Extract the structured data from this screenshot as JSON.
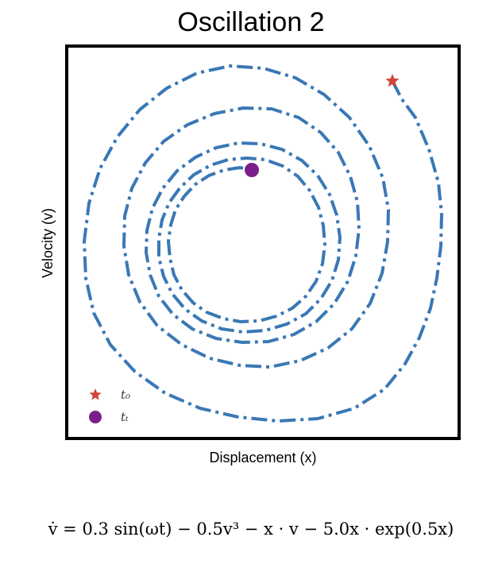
{
  "chart_data": {
    "type": "line",
    "title": "Oscillation 2",
    "xlabel": "Displacement (x)",
    "ylabel": "Velocity (v)",
    "grid": false,
    "ticks": false,
    "legend": {
      "placement": "bottom-left",
      "entries": [
        {
          "label": "t₀",
          "marker": "star",
          "color": "#d1453b"
        },
        {
          "label": "tₜ",
          "marker": "circle",
          "color": "#7a1f8a"
        }
      ]
    },
    "series": [
      {
        "line_style": "dash-dot",
        "color": "#3a78b5",
        "start_point": [
          0.9,
          0.7
        ],
        "end_point": [
          -0.05,
          0.35
        ],
        "shape": "inward spiral converging to a limit cycle"
      }
    ],
    "equation": "v̇ = 0.3 sin(ωt) − 0.5v³ − x · v − 5.0x · exp(0.5x)"
  }
}
